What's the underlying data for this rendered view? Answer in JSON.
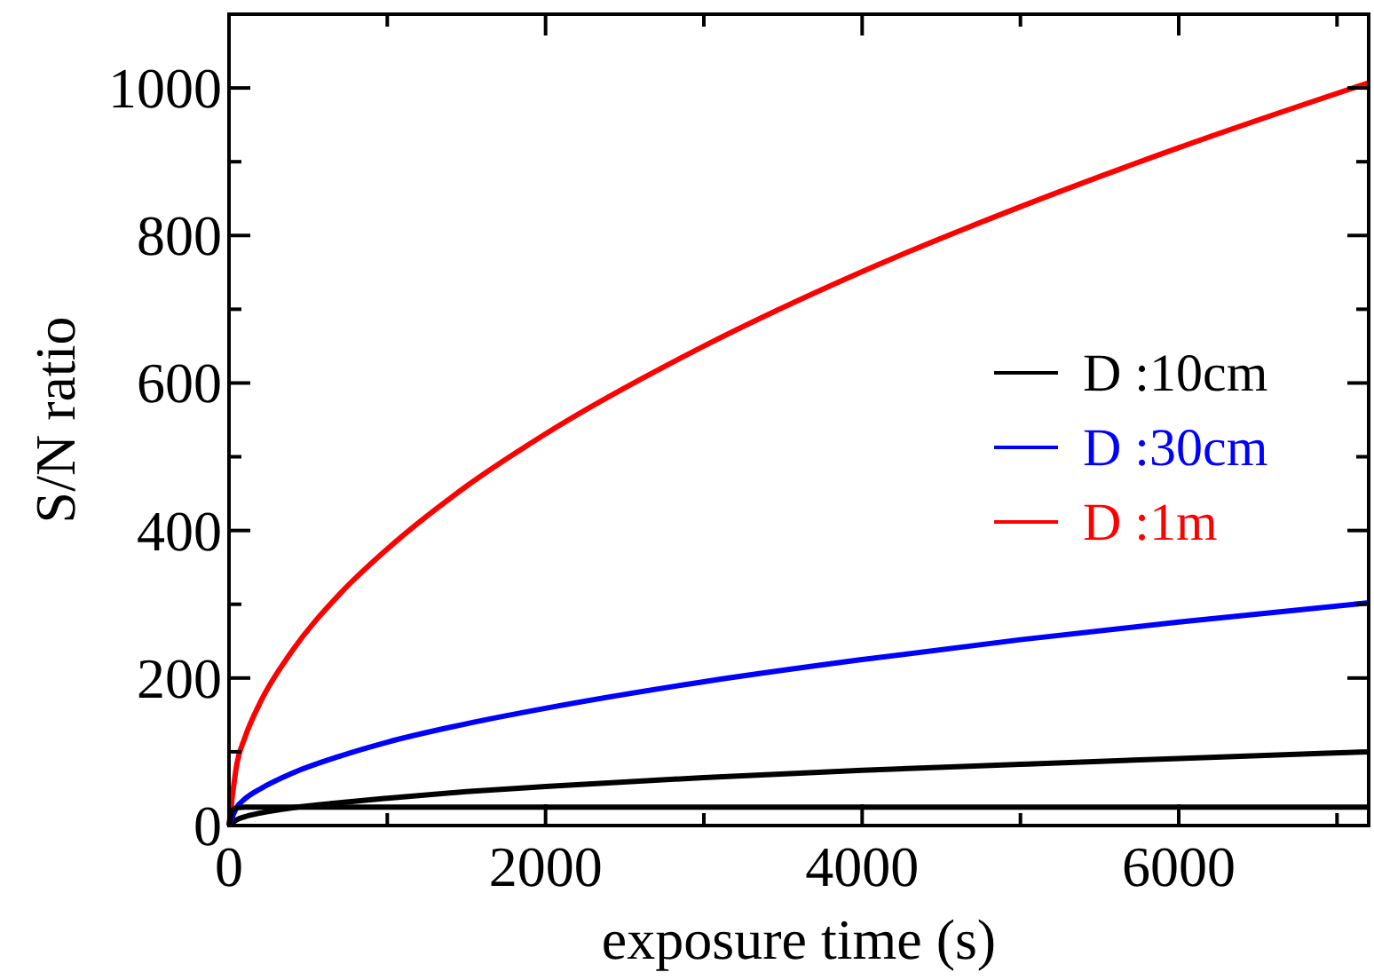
{
  "chart_data": {
    "type": "line",
    "xlabel": "exposure time (s)",
    "ylabel": "S/N ratio",
    "xlim": [
      0,
      7200
    ],
    "ylim": [
      0,
      1100
    ],
    "xticks": [
      0,
      {
        "value": 1000,
        "label": null
      },
      2000,
      {
        "value": 3000,
        "label": null
      },
      4000,
      {
        "value": 5000,
        "label": null
      },
      6000,
      {
        "value": 7000,
        "label": null
      }
    ],
    "yticks": [
      0,
      {
        "value": 100,
        "label": null
      },
      200,
      {
        "value": 300,
        "label": null
      },
      400,
      {
        "value": 500,
        "label": null
      },
      600,
      {
        "value": 700,
        "label": null
      },
      800,
      {
        "value": 900,
        "label": null
      },
      1000
    ],
    "legend": "right",
    "grid": false,
    "marker": "none",
    "line_style": "solid",
    "series": [
      {
        "name": "D :10cm",
        "color": "#000000",
        "x": [
          0,
          50,
          100,
          200,
          400,
          700,
          1000,
          1500,
          2000,
          3000,
          4000,
          5000,
          6000,
          7200
        ],
        "values": [
          0,
          8,
          12,
          17,
          24,
          31,
          37,
          46,
          53,
          65,
          75,
          83,
          91,
          100
        ]
      },
      {
        "name": "D :30cm",
        "color": "#0000ff",
        "x": [
          0,
          50,
          100,
          200,
          400,
          700,
          1000,
          1500,
          2000,
          3000,
          4000,
          5000,
          6000,
          7200
        ],
        "values": [
          0,
          25,
          36,
          50,
          71,
          94,
          113,
          138,
          159,
          195,
          225,
          252,
          276,
          302
        ]
      },
      {
        "name": "D :1m",
        "color": "#ff0000",
        "x": [
          0,
          50,
          100,
          200,
          400,
          700,
          1000,
          1500,
          2000,
          3000,
          4000,
          5000,
          6000,
          7200
        ],
        "values": [
          0,
          84,
          119,
          168,
          237,
          314,
          375,
          460,
          531,
          650,
          751,
          839,
          919,
          1007
        ]
      },
      {
        "color": "#000000",
        "x": [
          0,
          20,
          50,
          100,
          7200
        ],
        "values": [
          0,
          20,
          24,
          25,
          25
        ]
      }
    ]
  }
}
